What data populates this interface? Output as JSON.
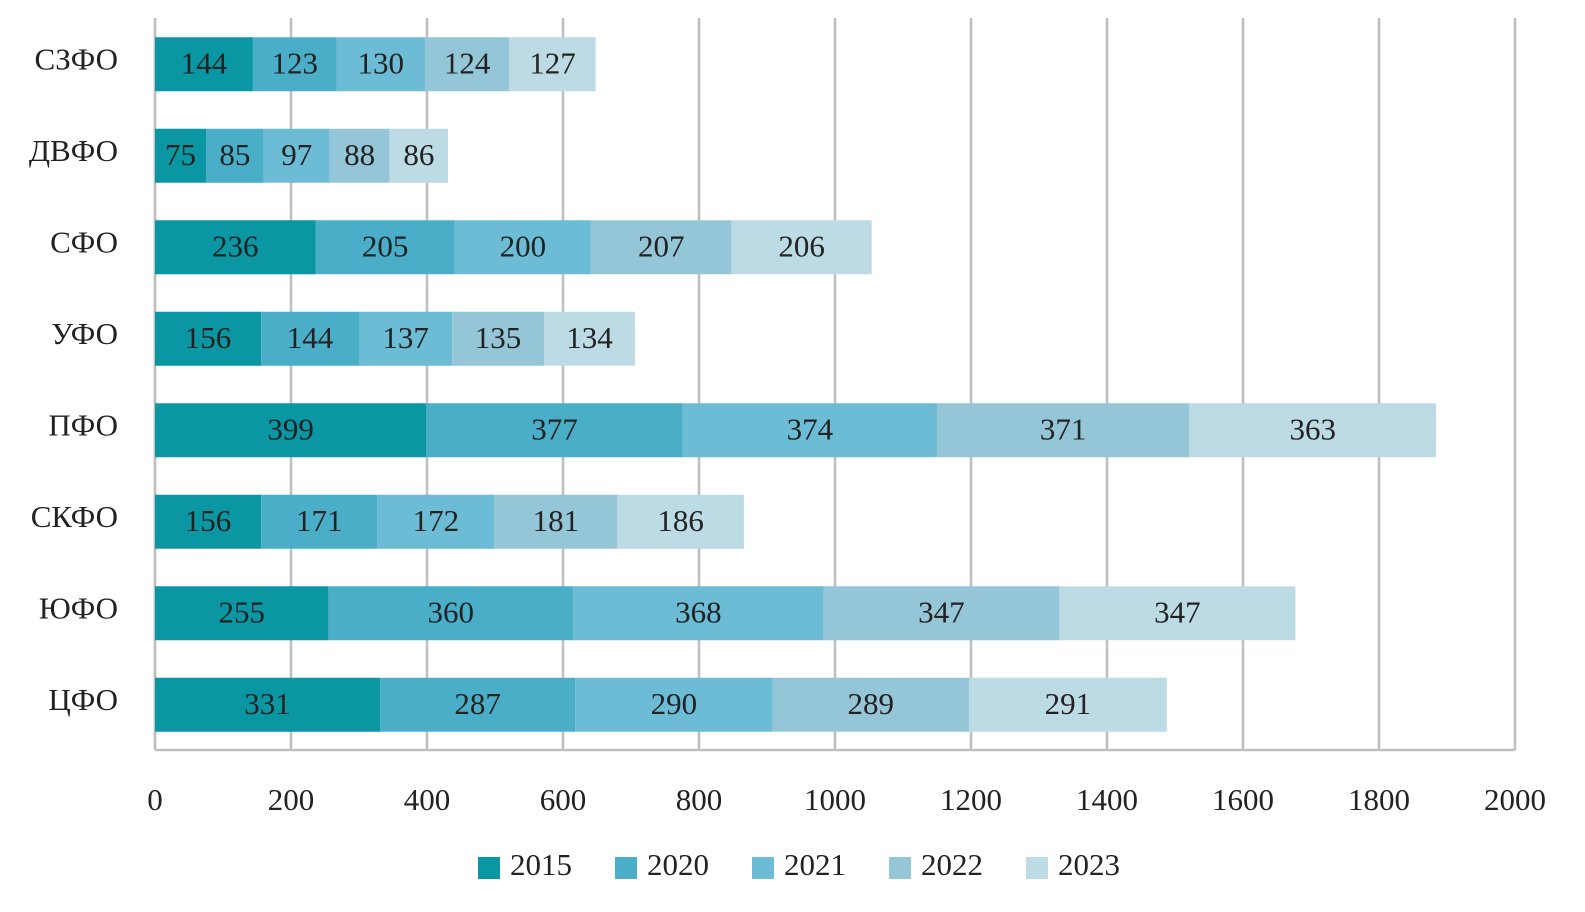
{
  "chart_data": {
    "type": "stacked_bar_horizontal",
    "categories": [
      "СЗФО",
      "ДВФО",
      "СФО",
      "УФО",
      "ПФО",
      "СКФО",
      "ЮФО",
      "ЦФО"
    ],
    "series": [
      {
        "name": "2015",
        "color": "#0a96a3",
        "values": [
          144,
          75,
          236,
          156,
          399,
          156,
          255,
          331
        ]
      },
      {
        "name": "2020",
        "color": "#4aaec8",
        "values": [
          123,
          85,
          205,
          144,
          377,
          171,
          360,
          287
        ]
      },
      {
        "name": "2021",
        "color": "#6bbcd4",
        "values": [
          130,
          97,
          200,
          137,
          374,
          172,
          368,
          290
        ]
      },
      {
        "name": "2022",
        "color": "#95c6d8",
        "values": [
          124,
          88,
          207,
          135,
          371,
          181,
          347,
          289
        ]
      },
      {
        "name": "2023",
        "color": "#bddbe5",
        "values": [
          127,
          86,
          206,
          134,
          363,
          186,
          347,
          291
        ]
      }
    ],
    "xlim": [
      0,
      2000
    ],
    "xticks": [
      0,
      200,
      400,
      600,
      800,
      1000,
      1200,
      1400,
      1600,
      1800,
      2000
    ],
    "grid": true
  }
}
